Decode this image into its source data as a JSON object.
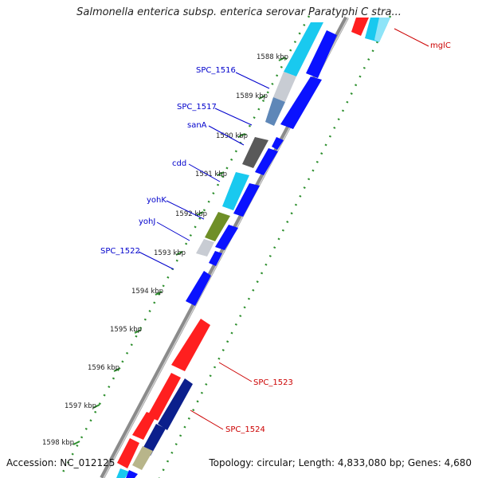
{
  "title": "Salmonella enterica subsp. enterica serovar Paratyphi C stra...",
  "footer": {
    "accession": "Accession: NC_012125",
    "summary": "Topology: circular; Length: 4,833,080 bp; Genes: 4,680"
  },
  "colors": {
    "forward_red": "#ff1f1f",
    "navy": "#0b1f8c",
    "blue": "#0a12ff",
    "cyan": "#19c9ef",
    "steel": "#5e87b8",
    "gray": "#595959",
    "olive": "#6f8f27",
    "khaki": "#b8b58a",
    "backbone": "#8b8b8b",
    "scale_dots": "#2d8f2d",
    "label_blue": "#0000cc",
    "label_red": "#cc0000"
  },
  "kbp_ticks": [
    {
      "label": "1588 kbp"
    },
    {
      "label": "1589 kbp"
    },
    {
      "label": "1590 kbp"
    },
    {
      "label": "1591 kbp"
    },
    {
      "label": "1592 kbp"
    },
    {
      "label": "1593 kbp"
    },
    {
      "label": "1594 kbp"
    },
    {
      "label": "1595 kbp"
    },
    {
      "label": "1596 kbp"
    },
    {
      "label": "1597 kbp"
    },
    {
      "label": "1598 kbp"
    }
  ],
  "gene_labels": [
    {
      "text": "mglC",
      "strand": "forward"
    },
    {
      "text": "SPC_1516",
      "strand": "reverse"
    },
    {
      "text": "SPC_1517",
      "strand": "reverse"
    },
    {
      "text": "sanA",
      "strand": "reverse"
    },
    {
      "text": "cdd",
      "strand": "reverse"
    },
    {
      "text": "yohK",
      "strand": "reverse"
    },
    {
      "text": "yohJ",
      "strand": "reverse"
    },
    {
      "text": "SPC_1522",
      "strand": "reverse"
    },
    {
      "text": "SPC_1523",
      "strand": "forward"
    },
    {
      "text": "SPC_1524",
      "strand": "forward"
    }
  ]
}
